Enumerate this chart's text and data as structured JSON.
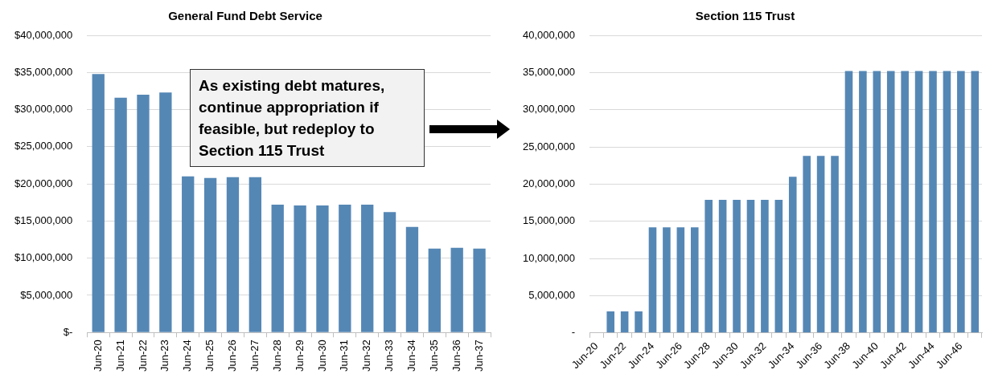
{
  "chart_data": [
    {
      "type": "bar",
      "title": "General Fund Debt Service",
      "categories": [
        "Jun-20",
        "Jun-21",
        "Jun-22",
        "Jun-23",
        "Jun-24",
        "Jun-25",
        "Jun-26",
        "Jun-27",
        "Jun-28",
        "Jun-29",
        "Jun-30",
        "Jun-31",
        "Jun-32",
        "Jun-33",
        "Jun-34",
        "Jun-35",
        "Jun-36",
        "Jun-37"
      ],
      "values": [
        34800000,
        31600000,
        32000000,
        32300000,
        21000000,
        20800000,
        20900000,
        20900000,
        17200000,
        17100000,
        17100000,
        17200000,
        17200000,
        16200000,
        14200000,
        11300000,
        11400000,
        11300000
      ],
      "color": "#5587b5",
      "ylim": [
        0,
        40000000
      ],
      "yticks": [
        {
          "value": 0,
          "label": "$-"
        },
        {
          "value": 5000000,
          "label": "$5,000,000"
        },
        {
          "value": 10000000,
          "label": "$10,000,000"
        },
        {
          "value": 15000000,
          "label": "$15,000,000"
        },
        {
          "value": 20000000,
          "label": "$20,000,000"
        },
        {
          "value": 25000000,
          "label": "$25,000,000"
        },
        {
          "value": 30000000,
          "label": "$30,000,000"
        },
        {
          "value": 35000000,
          "label": "$35,000,000"
        },
        {
          "value": 40000000,
          "label": "$40,000,000"
        }
      ],
      "grid": "y",
      "legend": false,
      "annotations": [
        "As existing debt matures, continue appropriation if feasible, but redeploy to Section 115 Trust"
      ]
    },
    {
      "type": "bar",
      "title": "Section 115 Trust",
      "categories": [
        "Jun-20",
        null,
        "Jun-22",
        null,
        "Jun-24",
        null,
        "Jun-26",
        null,
        "Jun-28",
        null,
        "Jun-30",
        null,
        "Jun-32",
        null,
        "Jun-34",
        null,
        "Jun-36",
        null,
        "Jun-38",
        null,
        "Jun-40",
        null,
        "Jun-42",
        null,
        "Jun-44",
        null,
        "Jun-46",
        null
      ],
      "values": [
        0,
        2900000,
        2900000,
        2900000,
        14200000,
        14200000,
        14200000,
        14200000,
        17900000,
        17900000,
        17900000,
        17900000,
        17900000,
        17900000,
        21000000,
        23800000,
        23800000,
        23800000,
        35200000,
        35200000,
        35200000,
        35200000,
        35200000,
        35200000,
        35200000,
        35200000,
        35200000,
        35200000
      ],
      "color": "#5587b5",
      "ylim": [
        0,
        40000000
      ],
      "yticks": [
        {
          "value": 0,
          "label": "-"
        },
        {
          "value": 5000000,
          "label": "5,000,000"
        },
        {
          "value": 10000000,
          "label": "10,000,000"
        },
        {
          "value": 15000000,
          "label": "15,000,000"
        },
        {
          "value": 20000000,
          "label": "20,000,000"
        },
        {
          "value": 25000000,
          "label": "25,000,000"
        },
        {
          "value": 30000000,
          "label": "30,000,000"
        },
        {
          "value": 35000000,
          "label": "35,000,000"
        },
        {
          "value": 40000000,
          "label": "40,000,000"
        }
      ],
      "grid": "y",
      "legend": false
    }
  ]
}
